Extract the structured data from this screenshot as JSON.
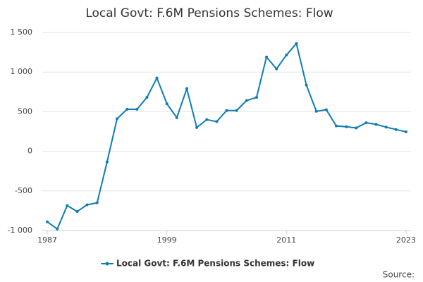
{
  "chart_data": {
    "type": "line",
    "title": "Local Govt: F.6M Pensions Schemes: Flow",
    "x": [
      1987,
      1988,
      1989,
      1990,
      1991,
      1992,
      1993,
      1994,
      1995,
      1996,
      1997,
      1998,
      1999,
      2000,
      2001,
      2002,
      2003,
      2004,
      2005,
      2006,
      2007,
      2008,
      2009,
      2010,
      2011,
      2012,
      2013,
      2014,
      2015,
      2016,
      2017,
      2018,
      2019,
      2020,
      2021,
      2022,
      2023
    ],
    "series": [
      {
        "name": "Local Govt: F.6M Pensions Schemes: Flow",
        "color": "#0e7cb5",
        "values": [
          -890,
          -980,
          -685,
          -760,
          -675,
          -650,
          -135,
          410,
          530,
          530,
          680,
          925,
          600,
          425,
          790,
          300,
          400,
          375,
          515,
          515,
          640,
          680,
          1190,
          1040,
          1215,
          1360,
          835,
          505,
          525,
          320,
          310,
          295,
          360,
          340,
          305,
          275,
          245
        ]
      }
    ],
    "xlim": [
      1986.5,
      2023.5
    ],
    "xticks": [
      1987,
      1999,
      2011,
      2023
    ],
    "ylim": [
      -1000,
      1500
    ],
    "yticks": [
      {
        "value": -1000,
        "label": "-1 000"
      },
      {
        "value": -500,
        "label": "-500"
      },
      0,
      500,
      {
        "value": 1000,
        "label": "1 000"
      },
      {
        "value": 1500,
        "label": "1 500"
      }
    ],
    "grid": true,
    "source": "Source:"
  }
}
